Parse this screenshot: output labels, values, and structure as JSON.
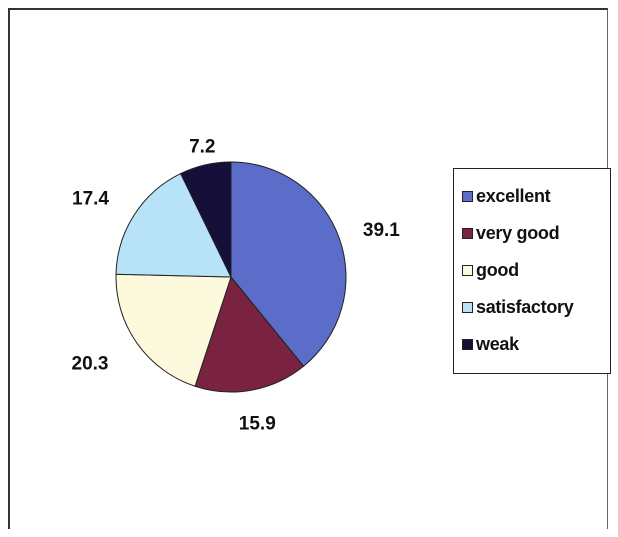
{
  "chart_data": {
    "type": "pie",
    "categories": [
      "excellent",
      "very good",
      "good",
      "satisfactory",
      "weak"
    ],
    "values": [
      39.1,
      15.9,
      20.3,
      17.4,
      7.2
    ],
    "labels": [
      "39.1",
      "15.9",
      "20.3",
      "17.4",
      "7.2"
    ],
    "colors": [
      "#5b6cc9",
      "#7a2340",
      "#fdf9dc",
      "#b8e2f7",
      "#150f3a"
    ],
    "title": "",
    "legend_position": "right",
    "start_angle": "top, clockwise"
  },
  "legend": {
    "items": [
      {
        "label": "excellent",
        "color": "#5b6cc9"
      },
      {
        "label": "very good",
        "color": "#7a2340"
      },
      {
        "label": "good",
        "color": "#fdf9dc"
      },
      {
        "label": "satisfactory",
        "color": "#b8e2f7"
      },
      {
        "label": "weak",
        "color": "#150f3a"
      }
    ]
  }
}
